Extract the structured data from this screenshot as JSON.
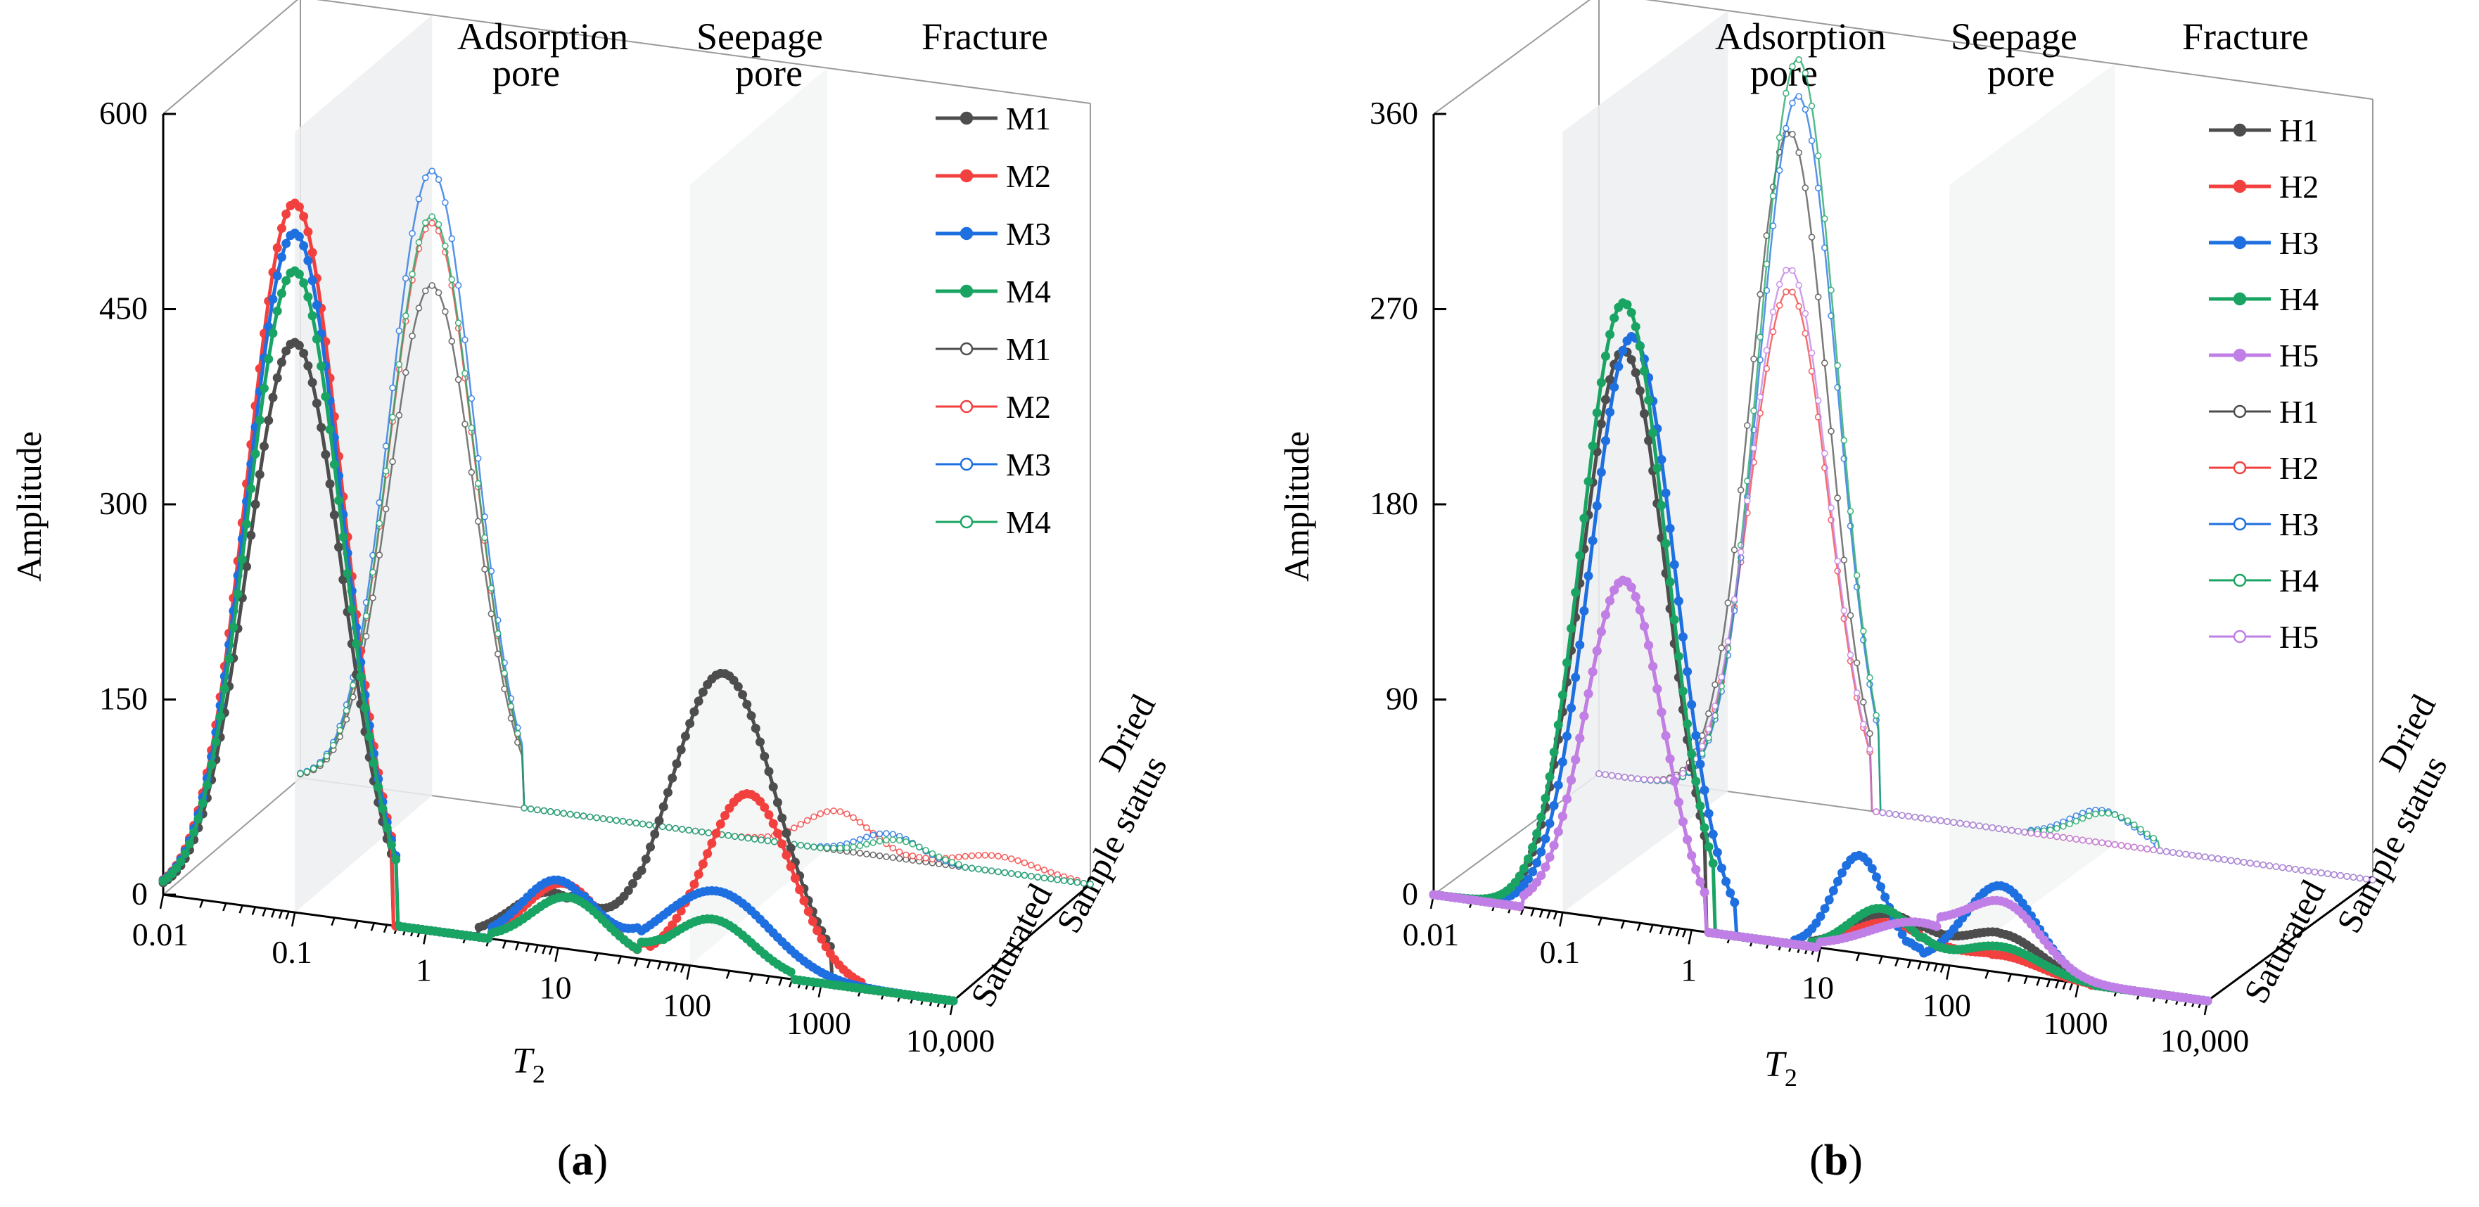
{
  "colors": {
    "M1": "#4d4d4d",
    "M2": "#f2403f",
    "M3": "#1e6fe0",
    "M4": "#19a463",
    "H1": "#4d4d4d",
    "H2": "#f2403f",
    "H3": "#1e6fe0",
    "H4": "#19a463",
    "H5": "#c07fe6"
  },
  "chart_data": [
    {
      "type": "line",
      "panel_label": "a",
      "title": "",
      "xlabel": "T",
      "xlabel_sub": "2",
      "ylabel": "Amplitude",
      "zlabel": "Sample status",
      "z_levels": [
        "Saturated",
        "Dried"
      ],
      "xscale": "log",
      "xlim": [
        0.01,
        10000
      ],
      "x_ticks": [
        0.01,
        0.1,
        1,
        10,
        100,
        1000,
        10000
      ],
      "x_tick_labels": [
        "0.01",
        "0.1",
        "1",
        "10",
        "100",
        "1000",
        "10,000"
      ],
      "ylim": [
        0,
        600
      ],
      "y_ticks": [
        0,
        150,
        300,
        450,
        600
      ],
      "y_tick_labels": [
        "0",
        "150",
        "300",
        "450",
        "600"
      ],
      "regions": [
        {
          "label1": "Adsorption",
          "label2": "pore",
          "x_from": 0.01,
          "x_to": 0.1
        },
        {
          "label1": "Seepage",
          "label2": "pore",
          "x_from": 0.1,
          "x_to": 100
        },
        {
          "label1": "Fracture",
          "label2": "",
          "x_from": 100,
          "x_to": 10000
        }
      ],
      "legend": [
        "M1",
        "M2",
        "M3",
        "M4",
        "M1",
        "M2",
        "M3",
        "M4"
      ],
      "series": [
        {
          "name": "M1",
          "state": "Saturated",
          "color_key": "M1",
          "peaks": [
            {
              "x": 0.1,
              "y": 438,
              "w": 0.36,
              "xmin": 0.01,
              "xmax": 0.55
            },
            {
              "x": 9,
              "y": 42,
              "w": 0.3,
              "xmin": 2.5,
              "xmax": 40
            },
            {
              "x": 180,
              "y": 228,
              "w": 0.4,
              "xmin": 12,
              "xmax": 1200
            }
          ]
        },
        {
          "name": "M2",
          "state": "Saturated",
          "color_key": "M2",
          "peaks": [
            {
              "x": 0.1,
              "y": 545,
              "w": 0.36,
              "xmin": 0.01,
              "xmax": 0.55
            },
            {
              "x": 11,
              "y": 50,
              "w": 0.28,
              "xmin": 3,
              "xmax": 50
            },
            {
              "x": 280,
              "y": 138,
              "w": 0.33,
              "xmin": 40,
              "xmax": 2000
            }
          ]
        },
        {
          "name": "M3",
          "state": "Saturated",
          "color_key": "M3",
          "peaks": [
            {
              "x": 0.1,
              "y": 522,
              "w": 0.36,
              "xmin": 0.01,
              "xmax": 0.6
            },
            {
              "x": 10,
              "y": 52,
              "w": 0.27,
              "xmin": 3,
              "xmax": 40
            },
            {
              "x": 160,
              "y": 60,
              "w": 0.4,
              "xmin": 15,
              "xmax": 5000
            }
          ]
        },
        {
          "name": "M4",
          "state": "Saturated",
          "color_key": "M4",
          "peaks": [
            {
              "x": 0.1,
              "y": 493,
              "w": 0.36,
              "xmin": 0.01,
              "xmax": 0.6
            },
            {
              "x": 12,
              "y": 40,
              "w": 0.28,
              "xmin": 3,
              "xmax": 60
            },
            {
              "x": 150,
              "y": 38,
              "w": 0.3,
              "xmin": 40,
              "xmax": 600
            }
          ]
        },
        {
          "name": "M1",
          "state": "Dried",
          "color_key": "M1",
          "peaks": [
            {
              "x": 0.1,
              "y": 392,
              "w": 0.32,
              "xmin": 0.01,
              "xmax": 0.5
            }
          ]
        },
        {
          "name": "M2",
          "state": "Dried",
          "color_key": "M2",
          "peaks": [
            {
              "x": 0.1,
              "y": 440,
              "w": 0.32,
              "xmin": 0.01,
              "xmax": 0.5
            },
            {
              "x": 120,
              "y": 30,
              "w": 0.25,
              "xmin": 20,
              "xmax": 600
            },
            {
              "x": 2000,
              "y": 12,
              "w": 0.3,
              "xmin": 400,
              "xmax": 8000
            }
          ]
        },
        {
          "name": "M3",
          "state": "Dried",
          "color_key": "M3",
          "peaks": [
            {
              "x": 0.1,
              "y": 480,
              "w": 0.32,
              "xmin": 0.01,
              "xmax": 0.5
            },
            {
              "x": 300,
              "y": 18,
              "w": 0.22,
              "xmin": 80,
              "xmax": 1000
            }
          ]
        },
        {
          "name": "M4",
          "state": "Dried",
          "color_key": "M4",
          "peaks": [
            {
              "x": 0.1,
              "y": 445,
              "w": 0.32,
              "xmin": 0.01,
              "xmax": 0.5
            },
            {
              "x": 350,
              "y": 14,
              "w": 0.22,
              "xmin": 100,
              "xmax": 1000
            }
          ]
        }
      ]
    },
    {
      "type": "line",
      "panel_label": "b",
      "title": "",
      "xlabel": "T",
      "xlabel_sub": "2",
      "ylabel": "Amplitude",
      "zlabel": "Sample status",
      "z_levels": [
        "Saturated",
        "Dried"
      ],
      "xscale": "log",
      "xlim": [
        0.01,
        10000
      ],
      "x_ticks": [
        0.01,
        0.1,
        1,
        10,
        100,
        1000,
        10000
      ],
      "x_tick_labels": [
        "0.01",
        "0.1",
        "1",
        "10",
        "100",
        "1000",
        "10,000"
      ],
      "ylim": [
        0,
        360
      ],
      "y_ticks": [
        0,
        90,
        180,
        270,
        360
      ],
      "y_tick_labels": [
        "0",
        "90",
        "180",
        "270",
        "360"
      ],
      "regions": [
        {
          "label1": "Adsorption",
          "label2": "pore",
          "x_from": 0.01,
          "x_to": 0.1
        },
        {
          "label1": "Seepage",
          "label2": "pore",
          "x_from": 0.1,
          "x_to": 100
        },
        {
          "label1": "Fracture",
          "label2": "",
          "x_from": 100,
          "x_to": 10000
        }
      ],
      "legend": [
        "H1",
        "H2",
        "H3",
        "H4",
        "H5",
        "H1",
        "H2",
        "H3",
        "H4",
        "H5"
      ],
      "series": [
        {
          "name": "H1",
          "state": "Saturated",
          "color_key": "H1",
          "peaks": [
            {
              "x": 0.3,
              "y": 263,
              "w": 0.33,
              "xmin": 0.01,
              "xmax": 1.3
            },
            {
              "x": 35,
              "y": 20,
              "w": 0.3,
              "xmin": 8,
              "xmax": 250
            },
            {
              "x": 250,
              "y": 18,
              "w": 0.3,
              "xmin": 60,
              "xmax": 1200
            }
          ]
        },
        {
          "name": "H2",
          "state": "Saturated",
          "color_key": "H2",
          "peaks": [
            {
              "x": 0.3,
              "y": 157,
              "w": 0.3,
              "xmin": 0.05,
              "xmax": 1.3
            },
            {
              "x": 35,
              "y": 16,
              "w": 0.3,
              "xmin": 8,
              "xmax": 200
            },
            {
              "x": 250,
              "y": 8,
              "w": 0.3,
              "xmin": 80,
              "xmax": 1200
            }
          ]
        },
        {
          "name": "H3",
          "state": "Saturated",
          "color_key": "H3",
          "peaks": [
            {
              "x": 0.35,
              "y": 270,
              "w": 0.33,
              "xmin": 0.03,
              "xmax": 2.2
            },
            {
              "x": 20,
              "y": 45,
              "w": 0.2,
              "xmin": 6,
              "xmax": 60
            },
            {
              "x": 250,
              "y": 40,
              "w": 0.28,
              "xmin": 50,
              "xmax": 1500
            }
          ]
        },
        {
          "name": "H4",
          "state": "Saturated",
          "color_key": "H4",
          "peaks": [
            {
              "x": 0.3,
              "y": 285,
              "w": 0.33,
              "xmin": 0.01,
              "xmax": 1.5
            },
            {
              "x": 30,
              "y": 22,
              "w": 0.25,
              "xmin": 8,
              "xmax": 200
            },
            {
              "x": 250,
              "y": 12,
              "w": 0.3,
              "xmin": 60,
              "xmax": 1300
            }
          ]
        },
        {
          "name": "H5",
          "state": "Saturated",
          "color_key": "H5",
          "peaks": [
            {
              "x": 0.3,
              "y": 157,
              "w": 0.3,
              "xmin": 0.05,
              "xmax": 1.3
            },
            {
              "x": 60,
              "y": 18,
              "w": 0.4,
              "xmin": 10,
              "xmax": 3000
            },
            {
              "x": 280,
              "y": 28,
              "w": 0.28,
              "xmin": 80,
              "xmax": 3000
            }
          ]
        },
        {
          "name": "H1",
          "state": "Dried",
          "color_key": "H1",
          "peaks": [
            {
              "x": 0.3,
              "y": 308,
              "w": 0.3,
              "xmin": 0.01,
              "xmax": 1.3
            }
          ]
        },
        {
          "name": "H2",
          "state": "Dried",
          "color_key": "H2",
          "peaks": [
            {
              "x": 0.3,
              "y": 235,
              "w": 0.3,
              "xmin": 0.01,
              "xmax": 1.3
            }
          ]
        },
        {
          "name": "H3",
          "state": "Dried",
          "color_key": "H3",
          "peaks": [
            {
              "x": 0.35,
              "y": 325,
              "w": 0.3,
              "xmin": 0.01,
              "xmax": 1.5
            },
            {
              "x": 80,
              "y": 15,
              "w": 0.25,
              "xmin": 20,
              "xmax": 200
            }
          ]
        },
        {
          "name": "H4",
          "state": "Dried",
          "color_key": "H4",
          "peaks": [
            {
              "x": 0.35,
              "y": 342,
              "w": 0.3,
              "xmin": 0.01,
              "xmax": 1.5
            },
            {
              "x": 90,
              "y": 14,
              "w": 0.25,
              "xmin": 20,
              "xmax": 220
            }
          ]
        },
        {
          "name": "H5",
          "state": "Dried",
          "color_key": "H5",
          "peaks": [
            {
              "x": 0.3,
              "y": 245,
              "w": 0.3,
              "xmin": 0.01,
              "xmax": 1.3
            }
          ]
        }
      ]
    }
  ]
}
